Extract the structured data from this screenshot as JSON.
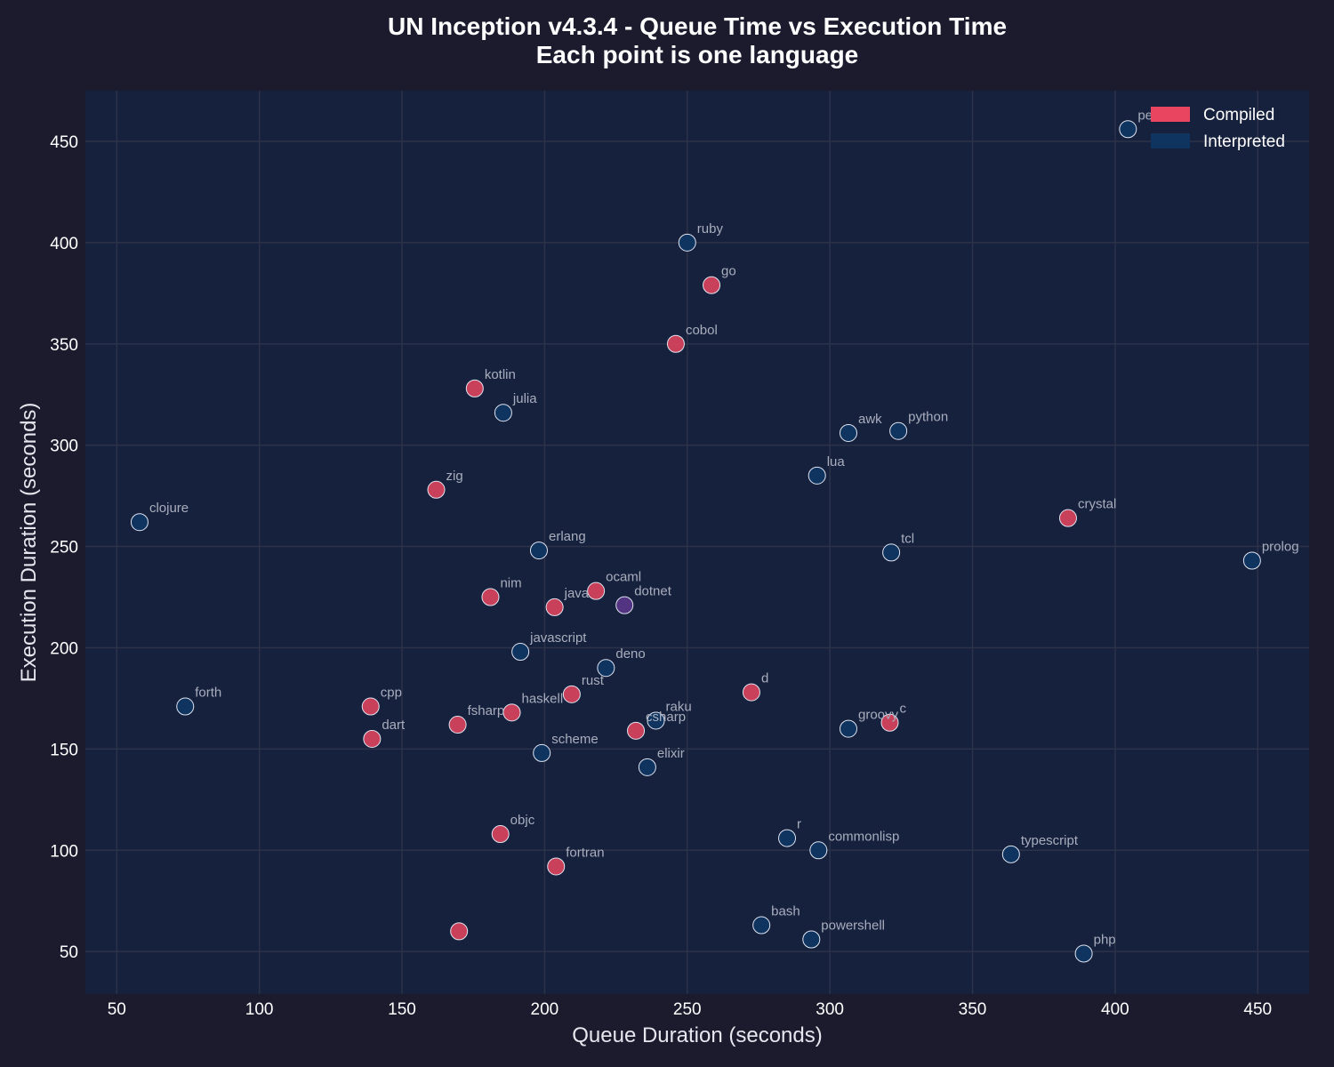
{
  "chart_data": {
    "type": "scatter",
    "title": "UN Inception v4.3.4 - Queue Time vs Execution Time",
    "subtitle": "Each point is one language",
    "xlabel": "Queue Duration (seconds)",
    "ylabel": "Execution Duration (seconds)",
    "xlim": [
      39,
      468
    ],
    "ylim": [
      29,
      475
    ],
    "xticks": [
      50,
      100,
      150,
      200,
      250,
      300,
      350,
      400,
      450
    ],
    "yticks": [
      50,
      100,
      150,
      200,
      250,
      300,
      350,
      400,
      450
    ],
    "grid": true,
    "legend_position": "top-right",
    "colors": {
      "background": "#1c1b2e",
      "plot_background": "#16213e",
      "grid": "#2c3349",
      "Compiled": "#e94560",
      "Interpreted": "#0f3460",
      "point_stroke": "#dfe3ee",
      "mixed": "#533483"
    },
    "legend": [
      {
        "name": "Compiled",
        "color": "#e94560"
      },
      {
        "name": "Interpreted",
        "color": "#0f3460"
      }
    ],
    "points": [
      {
        "label": "perl",
        "x": 404.5,
        "y": 456,
        "group": "Interpreted"
      },
      {
        "label": "ruby",
        "x": 250,
        "y": 400,
        "group": "Interpreted"
      },
      {
        "label": "go",
        "x": 258.5,
        "y": 379,
        "group": "Compiled"
      },
      {
        "label": "cobol",
        "x": 246,
        "y": 350,
        "group": "Compiled"
      },
      {
        "label": "kotlin",
        "x": 175.5,
        "y": 328,
        "group": "Compiled"
      },
      {
        "label": "julia",
        "x": 185.5,
        "y": 316,
        "group": "Interpreted"
      },
      {
        "label": "awk",
        "x": 306.5,
        "y": 306,
        "group": "Interpreted"
      },
      {
        "label": "python",
        "x": 324,
        "y": 307,
        "group": "Interpreted"
      },
      {
        "label": "lua",
        "x": 295.5,
        "y": 285,
        "group": "Interpreted"
      },
      {
        "label": "zig",
        "x": 162,
        "y": 278,
        "group": "Compiled"
      },
      {
        "label": "clojure",
        "x": 58,
        "y": 262,
        "group": "Interpreted"
      },
      {
        "label": "crystal",
        "x": 383.5,
        "y": 264,
        "group": "Compiled"
      },
      {
        "label": "erlang",
        "x": 198,
        "y": 248,
        "group": "Interpreted"
      },
      {
        "label": "tcl",
        "x": 321.5,
        "y": 247,
        "group": "Interpreted"
      },
      {
        "label": "prolog",
        "x": 448,
        "y": 243,
        "group": "Interpreted"
      },
      {
        "label": "ocaml",
        "x": 218,
        "y": 228,
        "group": "Compiled"
      },
      {
        "label": "nim",
        "x": 181,
        "y": 225,
        "group": "Compiled"
      },
      {
        "label": "java",
        "x": 203.5,
        "y": 220,
        "group": "Compiled"
      },
      {
        "label": "dotnet",
        "x": 228,
        "y": 221,
        "group": "Mixed"
      },
      {
        "label": "javascript",
        "x": 191.5,
        "y": 198,
        "group": "Interpreted"
      },
      {
        "label": "deno",
        "x": 221.5,
        "y": 190,
        "group": "Interpreted"
      },
      {
        "label": "rust",
        "x": 209.5,
        "y": 177,
        "group": "Compiled"
      },
      {
        "label": "d",
        "x": 272.5,
        "y": 178,
        "group": "Compiled"
      },
      {
        "label": "forth",
        "x": 74,
        "y": 171,
        "group": "Interpreted"
      },
      {
        "label": "cpp",
        "x": 139,
        "y": 171,
        "group": "Compiled"
      },
      {
        "label": "haskell",
        "x": 188.5,
        "y": 168,
        "group": "Compiled"
      },
      {
        "label": "fsharp",
        "x": 169.5,
        "y": 162,
        "group": "Compiled"
      },
      {
        "label": "raku",
        "x": 239,
        "y": 164,
        "group": "Interpreted"
      },
      {
        "label": "csharp",
        "x": 232,
        "y": 159,
        "group": "Compiled"
      },
      {
        "label": "groovy",
        "x": 306.5,
        "y": 160,
        "group": "Interpreted"
      },
      {
        "label": "c",
        "x": 321,
        "y": 163,
        "group": "Compiled"
      },
      {
        "label": "dart",
        "x": 139.5,
        "y": 155,
        "group": "Compiled"
      },
      {
        "label": "scheme",
        "x": 199,
        "y": 148,
        "group": "Interpreted"
      },
      {
        "label": "elixir",
        "x": 236,
        "y": 141,
        "group": "Interpreted"
      },
      {
        "label": "objc",
        "x": 184.5,
        "y": 108,
        "group": "Compiled"
      },
      {
        "label": "r",
        "x": 285,
        "y": 106,
        "group": "Interpreted"
      },
      {
        "label": "commonlisp",
        "x": 296,
        "y": 100,
        "group": "Interpreted"
      },
      {
        "label": "typescript",
        "x": 363.5,
        "y": 98,
        "group": "Interpreted"
      },
      {
        "label": "fortran",
        "x": 204,
        "y": 92,
        "group": "Compiled"
      },
      {
        "label": "bash",
        "x": 276,
        "y": 63,
        "group": "Interpreted"
      },
      {
        "label": "powershell",
        "x": 293.5,
        "y": 56,
        "group": "Interpreted"
      },
      {
        "label": "",
        "x": 170,
        "y": 60,
        "group": "Compiled"
      },
      {
        "label": "php",
        "x": 389,
        "y": 49,
        "group": "Interpreted"
      }
    ]
  }
}
